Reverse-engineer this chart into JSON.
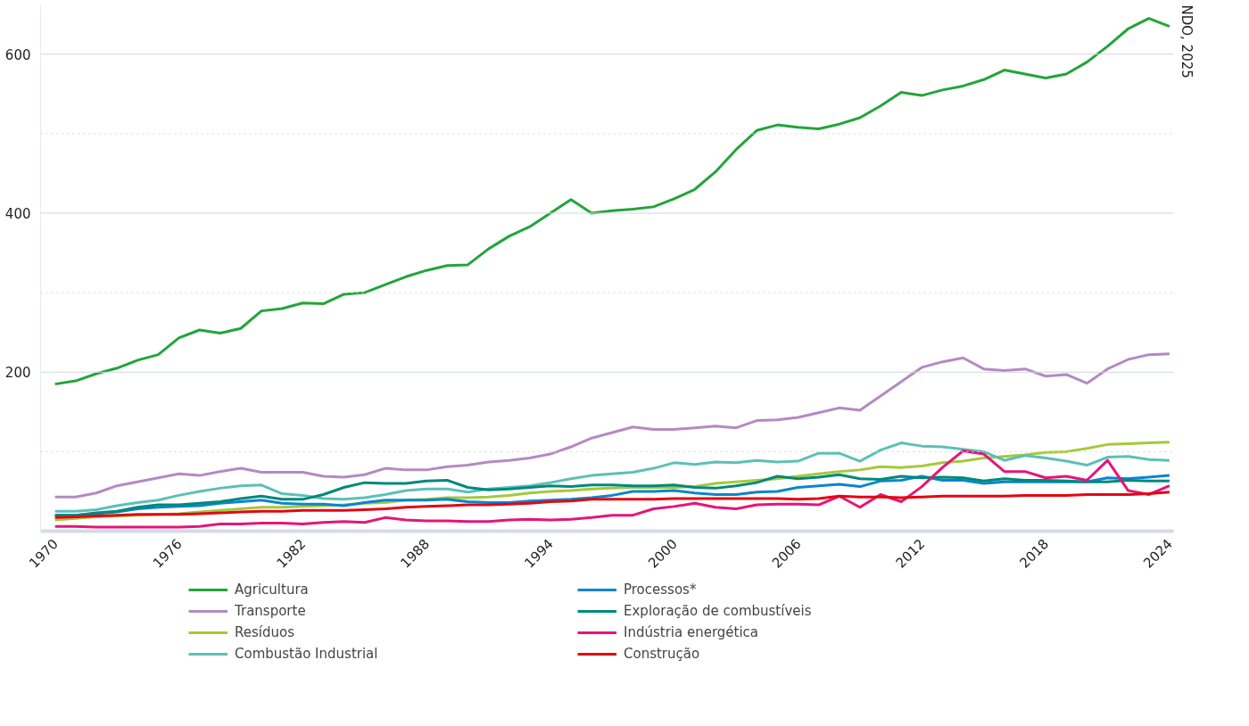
{
  "chart_data": {
    "type": "line",
    "x": [
      1970,
      1971,
      1972,
      1973,
      1974,
      1975,
      1976,
      1977,
      1978,
      1979,
      1980,
      1981,
      1982,
      1983,
      1984,
      1985,
      1986,
      1987,
      1988,
      1989,
      1990,
      1991,
      1992,
      1993,
      1994,
      1995,
      1996,
      1997,
      1998,
      1999,
      2000,
      2001,
      2002,
      2003,
      2004,
      2005,
      2006,
      2007,
      2008,
      2009,
      2010,
      2011,
      2012,
      2013,
      2014,
      2015,
      2016,
      2017,
      2018,
      2019,
      2020,
      2021,
      2022,
      2023,
      2024
    ],
    "series": [
      {
        "name": "Agricultura",
        "color": "#22a53a",
        "values": [
          185,
          189,
          198,
          205,
          215,
          222,
          243,
          253,
          249,
          255,
          277,
          280,
          287,
          286,
          298,
          300,
          310,
          320,
          328,
          334,
          335,
          355,
          371,
          383,
          400,
          417,
          400,
          403,
          405,
          408,
          418,
          430,
          452,
          480,
          504,
          511,
          508,
          506,
          512,
          520,
          535,
          552,
          548,
          555,
          560,
          568,
          580,
          575,
          570,
          575,
          590,
          610,
          632,
          645,
          635
        ]
      },
      {
        "name": "Transporte",
        "color": "#b48ac2",
        "values": [
          43,
          43,
          48,
          57,
          62,
          67,
          72,
          70,
          75,
          79,
          74,
          74,
          74,
          69,
          68,
          71,
          79,
          77,
          77,
          81,
          83,
          87,
          89,
          92,
          97,
          106,
          117,
          124,
          131,
          128,
          128,
          130,
          132,
          130,
          139,
          140,
          143,
          149,
          155,
          152,
          170,
          188,
          206,
          213,
          218,
          204,
          202,
          204,
          195,
          197,
          186,
          204,
          216,
          222,
          223
        ]
      },
      {
        "name": "Resíduos",
        "color": "#a4c93a",
        "values": [
          14,
          16,
          18,
          19,
          20,
          21,
          22,
          24,
          26,
          28,
          30,
          30,
          31,
          32,
          33,
          35,
          36,
          39,
          40,
          42,
          42,
          43,
          45,
          48,
          50,
          51,
          53,
          54,
          55,
          55,
          55,
          56,
          60,
          62,
          64,
          66,
          69,
          72,
          75,
          77,
          81,
          80,
          82,
          86,
          88,
          92,
          94,
          96,
          99,
          100,
          104,
          109,
          110,
          111,
          112
        ]
      },
      {
        "name": "Combustão Industrial",
        "color": "#5cc0b8",
        "values": [
          25,
          25,
          27,
          32,
          36,
          39,
          45,
          50,
          54,
          57,
          58,
          47,
          45,
          41,
          40,
          42,
          46,
          51,
          53,
          53,
          49,
          53,
          55,
          57,
          61,
          66,
          70,
          72,
          74,
          79,
          86,
          84,
          87,
          86,
          89,
          87,
          88,
          98,
          98,
          88,
          102,
          111,
          107,
          106,
          103,
          100,
          89,
          95,
          92,
          88,
          83,
          93,
          94,
          90,
          89
        ]
      },
      {
        "name": "Processos*",
        "color": "#0a85d0",
        "values": [
          20,
          20,
          22,
          24,
          28,
          30,
          31,
          32,
          35,
          37,
          39,
          35,
          34,
          34,
          32,
          36,
          39,
          39,
          39,
          40,
          37,
          36,
          36,
          38,
          39,
          40,
          42,
          45,
          50,
          50,
          51,
          48,
          46,
          46,
          49,
          50,
          55,
          57,
          59,
          56,
          63,
          64,
          69,
          64,
          64,
          60,
          62,
          62,
          62,
          62,
          62,
          67,
          66,
          68,
          70
        ]
      },
      {
        "name": "Exploração de combustíveis",
        "color": "#00897a",
        "values": [
          20,
          20,
          23,
          25,
          30,
          33,
          33,
          35,
          37,
          41,
          44,
          40,
          40,
          46,
          55,
          61,
          60,
          60,
          63,
          64,
          55,
          52,
          53,
          55,
          57,
          56,
          58,
          58,
          57,
          57,
          58,
          55,
          54,
          57,
          61,
          69,
          66,
          68,
          71,
          66,
          65,
          69,
          67,
          68,
          67,
          63,
          66,
          64,
          64,
          63,
          62,
          62,
          64,
          63,
          63
        ]
      },
      {
        "name": "Indústria energética",
        "color": "#e5157a",
        "values": [
          6,
          6,
          5,
          5,
          5,
          5,
          5,
          6,
          9,
          9,
          10,
          10,
          9,
          11,
          12,
          11,
          17,
          14,
          13,
          13,
          12,
          12,
          14,
          15,
          14,
          15,
          17,
          20,
          20,
          28,
          31,
          35,
          30,
          28,
          33,
          34,
          34,
          33,
          44,
          30,
          46,
          37,
          56,
          80,
          101,
          97,
          75,
          75,
          67,
          69,
          64,
          89,
          51,
          46,
          57
        ]
      },
      {
        "name": "Construção",
        "color": "#e30613",
        "values": [
          17,
          18,
          19,
          20,
          21,
          21,
          21,
          22,
          23,
          24,
          25,
          25,
          26,
          26,
          26,
          27,
          28,
          30,
          31,
          32,
          33,
          33,
          34,
          35,
          37,
          38,
          40,
          40,
          40,
          40,
          41,
          41,
          41,
          41,
          41,
          41,
          40,
          41,
          44,
          43,
          43,
          42,
          43,
          44,
          44,
          44,
          44,
          45,
          45,
          45,
          46,
          46,
          46,
          47,
          49
        ]
      }
    ],
    "xlim": [
      1969.3,
      2024.2
    ],
    "xticks": [
      1970,
      1976,
      1982,
      1988,
      1994,
      2000,
      2006,
      2012,
      2018,
      2024
    ],
    "ylim": [
      0,
      662
    ],
    "yticks": [
      {
        "value": 100,
        "label": null
      },
      200,
      {
        "value": 300,
        "label": null
      },
      400,
      {
        "value": 500,
        "label": null
      },
      600
    ],
    "grid": "y",
    "legend": "bottom",
    "marker": "none",
    "line_style": "solid",
    "annotations": [
      "NDO, 2025"
    ]
  }
}
